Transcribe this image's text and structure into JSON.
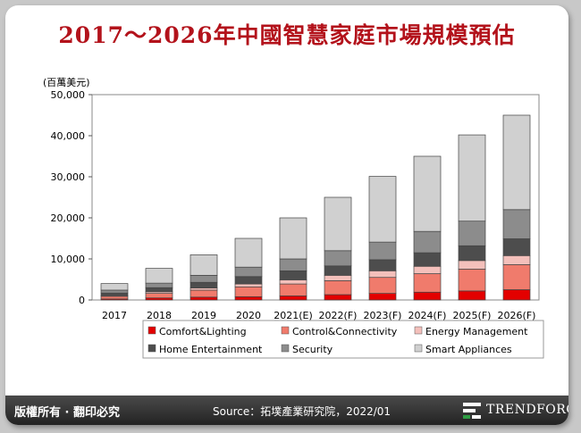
{
  "title": "2017～2026年中國智慧家庭市場規模預估",
  "footer": {
    "copyright": "版權所有 · 翻印必究",
    "source": "Source：拓墣產業研究院，2022/01",
    "brand": "TRENDFORCE"
  },
  "chart_data": {
    "type": "bar",
    "stacked": true,
    "unit_label": "(百萬美元)",
    "categories": [
      "2017",
      "2018",
      "2019",
      "2020",
      "2021(E)",
      "2022(F)",
      "2023(F)",
      "2024(F)",
      "2025(F)",
      "2026(F)"
    ],
    "ylim": [
      0,
      50000
    ],
    "yticks": [
      0,
      10000,
      20000,
      30000,
      40000,
      50000
    ],
    "ytick_labels": [
      "0",
      "10,000",
      "20,000",
      "30,000",
      "40,000",
      "50,000"
    ],
    "grid": false,
    "legend_position": "bottom",
    "series": [
      {
        "name": "Comfort&Lighting",
        "color": "#e30000",
        "values": [
          250,
          500,
          700,
          800,
          1000,
          1300,
          1600,
          1900,
          2200,
          2500
        ]
      },
      {
        "name": "Control&Connectivity",
        "color": "#f07b6c",
        "values": [
          650,
          1100,
          1700,
          2400,
          2900,
          3400,
          3900,
          4500,
          5300,
          6100
        ]
      },
      {
        "name": "Energy Management",
        "color": "#f4c0bb",
        "values": [
          200,
          400,
          500,
          700,
          1000,
          1300,
          1600,
          1800,
          2100,
          2200
        ]
      },
      {
        "name": "Home Entertainment",
        "color": "#4d4d4d",
        "values": [
          600,
          1000,
          1400,
          1800,
          2200,
          2300,
          2700,
          3300,
          3600,
          4100
        ]
      },
      {
        "name": "Security",
        "color": "#8c8c8c",
        "values": [
          700,
          1100,
          1700,
          2300,
          2900,
          3700,
          4300,
          5200,
          6000,
          7100
        ]
      },
      {
        "name": "Smart Appliances",
        "color": "#d0d0d0",
        "values": [
          1600,
          3600,
          5000,
          7000,
          10000,
          13000,
          16000,
          18300,
          21000,
          23000
        ]
      }
    ]
  }
}
